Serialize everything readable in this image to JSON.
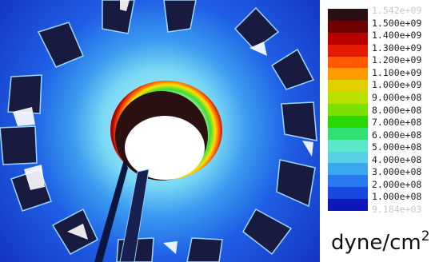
{
  "legend": {
    "ticks": [
      {
        "label": "1.542e+09",
        "faded": true
      },
      {
        "label": "1.500e+09",
        "faded": false
      },
      {
        "label": "1.400e+09",
        "faded": false
      },
      {
        "label": "1.300e+09",
        "faded": false
      },
      {
        "label": "1.200e+09",
        "faded": false
      },
      {
        "label": "1.100e+09",
        "faded": false
      },
      {
        "label": "1.000e+09",
        "faded": false
      },
      {
        "label": "9.000e+08",
        "faded": false
      },
      {
        "label": "8.000e+08",
        "faded": false
      },
      {
        "label": "7.000e+08",
        "faded": false
      },
      {
        "label": "6.000e+08",
        "faded": false
      },
      {
        "label": "5.000e+08",
        "faded": false
      },
      {
        "label": "4.000e+08",
        "faded": false
      },
      {
        "label": "3.000e+08",
        "faded": false
      },
      {
        "label": "2.000e+08",
        "faded": false
      },
      {
        "label": "1.000e+08",
        "faded": false
      },
      {
        "label": "9.184e+03",
        "faded": true
      }
    ],
    "unit_base": "dyne/cm",
    "unit_exp": "2",
    "colors": [
      "#2a1010",
      "#6e0000",
      "#b80000",
      "#e61a00",
      "#ff5a00",
      "#ff9a00",
      "#e0d000",
      "#b8e000",
      "#7ae000",
      "#28d800",
      "#30e070",
      "#5ae8c8",
      "#58d0e8",
      "#3aa8f0",
      "#2878f0",
      "#1848e0",
      "#0c18b8"
    ]
  },
  "image": {
    "subject": "stress contour plot of a ring with slots and a central bore",
    "colors": {
      "background": "#1a3fd8",
      "ring_glow": "#6ad8f0",
      "hot": "#8a0000",
      "green_band": "#2ee040",
      "bore": "#ffffff"
    }
  }
}
